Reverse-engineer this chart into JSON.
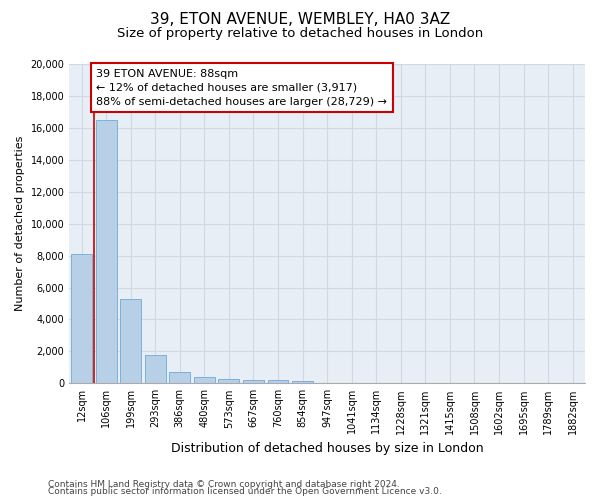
{
  "title": "39, ETON AVENUE, WEMBLEY, HA0 3AZ",
  "subtitle": "Size of property relative to detached houses in London",
  "xlabel": "Distribution of detached houses by size in London",
  "ylabel": "Number of detached properties",
  "footnote1": "Contains HM Land Registry data © Crown copyright and database right 2024.",
  "footnote2": "Contains public sector information licensed under the Open Government Licence v3.0.",
  "categories": [
    "12sqm",
    "106sqm",
    "199sqm",
    "293sqm",
    "386sqm",
    "480sqm",
    "573sqm",
    "667sqm",
    "760sqm",
    "854sqm",
    "947sqm",
    "1041sqm",
    "1134sqm",
    "1228sqm",
    "1321sqm",
    "1415sqm",
    "1508sqm",
    "1602sqm",
    "1695sqm",
    "1789sqm",
    "1882sqm"
  ],
  "values": [
    8100,
    16500,
    5300,
    1750,
    700,
    370,
    270,
    200,
    180,
    150,
    0,
    0,
    0,
    0,
    0,
    0,
    0,
    0,
    0,
    0,
    0
  ],
  "bar_color": "#b8cfe8",
  "bar_edge_color": "#5a9fd4",
  "vline_color": "#cc0000",
  "annotation_text": "39 ETON AVENUE: 88sqm\n← 12% of detached houses are smaller (3,917)\n88% of semi-detached houses are larger (28,729) →",
  "annotation_box_facecolor": "#ffffff",
  "annotation_box_edgecolor": "#cc0000",
  "ylim": [
    0,
    20000
  ],
  "yticks": [
    0,
    2000,
    4000,
    6000,
    8000,
    10000,
    12000,
    14000,
    16000,
    18000,
    20000
  ],
  "grid_color": "#d0d8e4",
  "bg_color": "#e8eef5",
  "title_fontsize": 11,
  "subtitle_fontsize": 9.5,
  "xlabel_fontsize": 9,
  "ylabel_fontsize": 8,
  "tick_fontsize": 7,
  "annotation_fontsize": 8,
  "footnote_fontsize": 6.5
}
